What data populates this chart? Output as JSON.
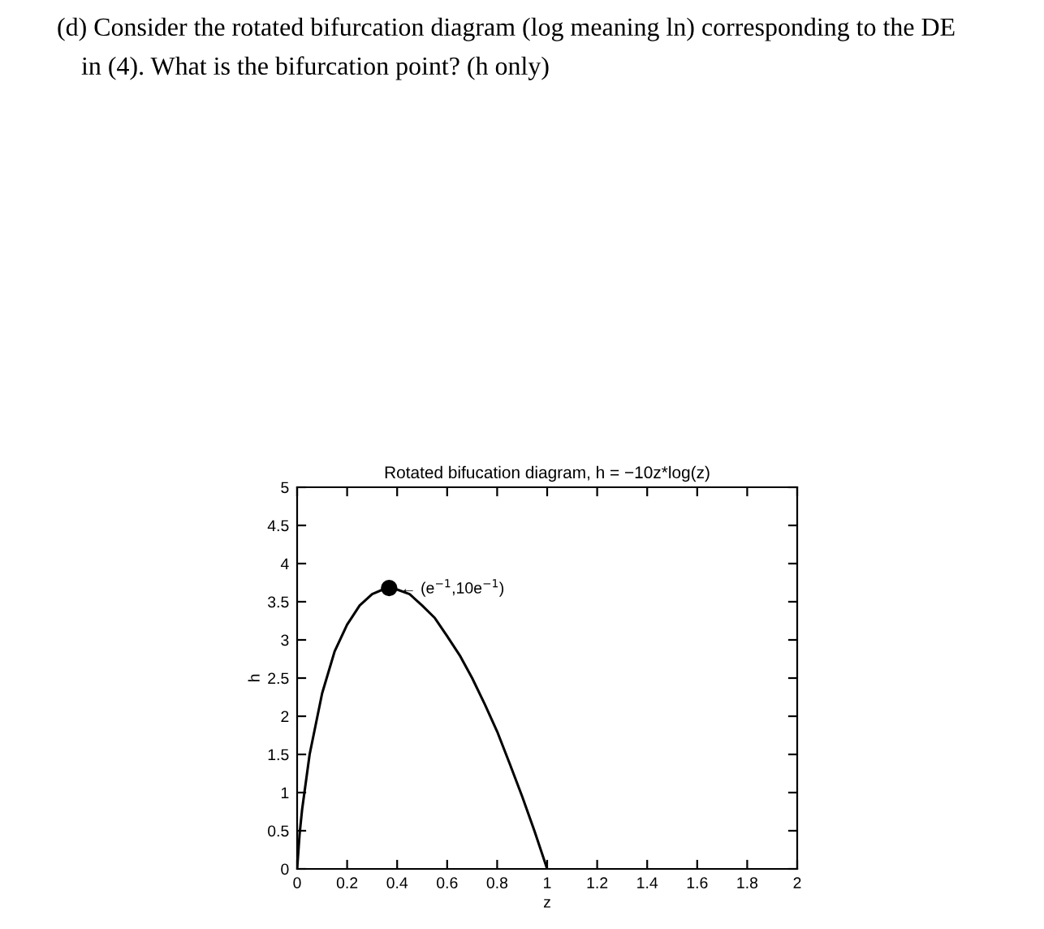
{
  "chart_data": {
    "type": "line",
    "title": "Rotated bifucation diagram, h = −10z*log(z)",
    "xlabel": "z",
    "ylabel": "h",
    "annotations": [
      "(d) Consider the rotated bifurcation diagram (log meaning ln) corresponding to the DE",
      "in (4). What is the bifurcation point? (h only)",
      {
        "text": "← (e$^{−1}$,10e$^{−1}$)",
        "x": 0.368,
        "y": 3.68
      }
    ],
    "series": [
      {
        "color": "#000000",
        "marker": "none",
        "x": [
          0,
          0.01,
          0.02,
          0.05,
          0.1,
          0.15,
          0.2,
          0.25,
          0.3,
          0.35,
          0.368,
          0.4,
          0.45,
          0.5,
          0.55,
          0.6,
          0.65,
          0.7,
          0.75,
          0.8,
          0.85,
          0.9,
          0.95,
          1.0
        ],
        "values": [
          0,
          0.46,
          0.78,
          1.5,
          2.3,
          2.85,
          3.2,
          3.45,
          3.6,
          3.67,
          3.68,
          3.66,
          3.6,
          3.45,
          3.29,
          3.05,
          2.8,
          2.5,
          2.16,
          1.8,
          1.38,
          0.95,
          0.49,
          0
        ]
      },
      {
        "type": "scatter",
        "color": "#000000",
        "marker": "circle",
        "x": [
          0.368
        ],
        "values": [
          3.68
        ]
      }
    ],
    "xlim": [
      0,
      2
    ],
    "xticks": [
      0,
      0.2,
      0.4,
      0.6,
      0.8,
      1,
      1.2,
      1.4,
      1.6,
      1.8,
      2
    ],
    "ylim": [
      0,
      5
    ],
    "yticks": [
      0,
      0.5,
      1,
      1.5,
      2,
      2.5,
      3,
      3.5,
      4,
      4.5,
      5
    ],
    "grid": false,
    "legend": false
  }
}
